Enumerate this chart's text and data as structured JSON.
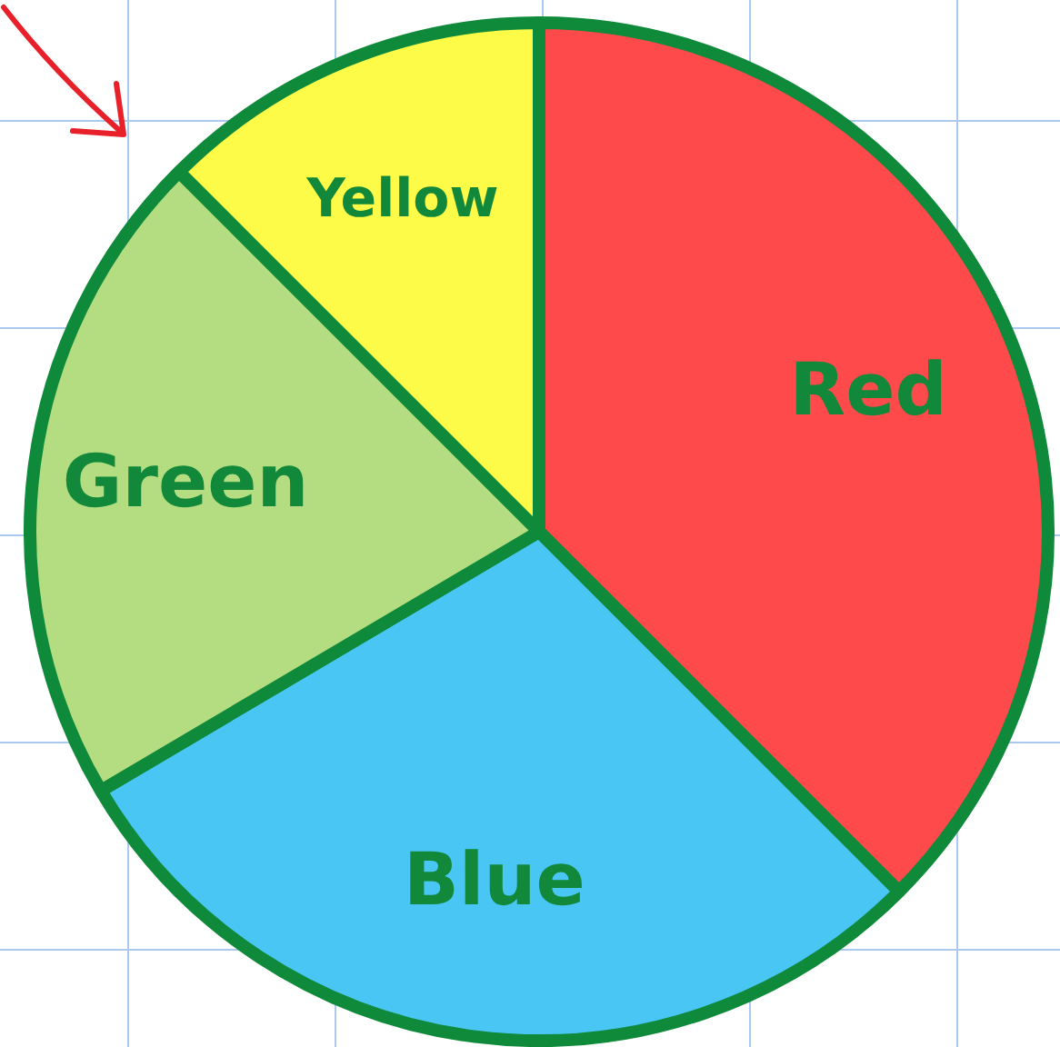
{
  "chart_data": {
    "type": "pie",
    "categories": [
      "Red",
      "Blue",
      "Green",
      "Yellow"
    ],
    "values": [
      37.5,
      29,
      21,
      12.5
    ],
    "colors": [
      "#fe4a4b",
      "#4ac6f5",
      "#b4dd82",
      "#fdfa48"
    ],
    "legend": false
  }
}
